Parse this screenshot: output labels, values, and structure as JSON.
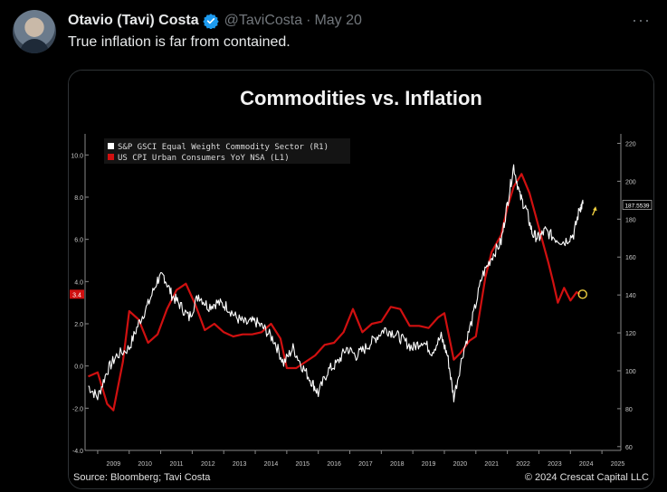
{
  "tweet": {
    "author_name": "Otavio (Tavi) Costa",
    "handle": "@TaviCosta",
    "separator": "·",
    "date": "May 20",
    "text": "True inflation is far from contained.",
    "more_label": "···"
  },
  "colors": {
    "commodity": "#ffffff",
    "cpi": "#d01010",
    "marker": "#f0d040"
  },
  "footer": {
    "source": "Source: Bloomberg; Tavi Costa",
    "copyright": "© 2024 Crescat Capital LLC"
  },
  "chart_data": {
    "type": "line",
    "title": "Commodities vs. Inflation",
    "x_ticks": [
      "2009",
      "2010",
      "2011",
      "2012",
      "2013",
      "2014",
      "2015",
      "2016",
      "2017",
      "2018",
      "2019",
      "2020",
      "2021",
      "2022",
      "2023",
      "2024",
      "2025"
    ],
    "xlim": [
      2008.6,
      2025.6
    ],
    "left_axis": {
      "ticks": [
        "10.0",
        "8.0",
        "6.0",
        "4.0",
        "2.0",
        "0.0",
        "-2.0",
        "-4.0"
      ],
      "ylim": [
        -4,
        11
      ]
    },
    "right_axis": {
      "ticks": [
        "220",
        "200",
        "180",
        "160",
        "140",
        "120",
        "100",
        "80",
        "60"
      ],
      "ylim": [
        58,
        225
      ]
    },
    "last_value_labels": {
      "left": "3.4",
      "right": "187.5539"
    },
    "series": [
      {
        "name": "S&P GSCI Equal Weight Commodity Sector  (R1)",
        "axis": "right",
        "x": [
          2008.7,
          2009.0,
          2009.3,
          2009.6,
          2010.0,
          2010.3,
          2010.6,
          2010.9,
          2011.1,
          2011.35,
          2011.6,
          2011.9,
          2012.2,
          2012.5,
          2012.8,
          2013.1,
          2013.4,
          2013.7,
          2014.0,
          2014.3,
          2014.6,
          2014.9,
          2015.2,
          2015.5,
          2015.8,
          2016.0,
          2016.3,
          2016.6,
          2016.9,
          2017.2,
          2017.5,
          2017.8,
          2018.1,
          2018.4,
          2018.7,
          2019.0,
          2019.3,
          2019.6,
          2019.9,
          2020.1,
          2020.3,
          2020.6,
          2020.9,
          2021.2,
          2021.5,
          2021.8,
          2022.0,
          2022.2,
          2022.4,
          2022.6,
          2022.8,
          2023.0,
          2023.2,
          2023.5,
          2023.8,
          2024.1,
          2024.3,
          2024.4
        ],
        "values": [
          92,
          86,
          100,
          108,
          112,
          125,
          135,
          148,
          150,
          140,
          135,
          128,
          140,
          134,
          136,
          134,
          128,
          125,
          126,
          122,
          116,
          104,
          112,
          102,
          94,
          88,
          100,
          104,
          112,
          108,
          112,
          117,
          122,
          120,
          116,
          112,
          116,
          110,
          118,
          108,
          86,
          110,
          128,
          150,
          160,
          168,
          188,
          208,
          192,
          185,
          172,
          170,
          174,
          170,
          168,
          172,
          186,
          188
        ]
      },
      {
        "name": "US CPI Urban Consumers YoY NSA  (L1)",
        "axis": "left",
        "x": [
          2008.7,
          2009.0,
          2009.3,
          2009.5,
          2009.8,
          2010.0,
          2010.3,
          2010.6,
          2010.9,
          2011.2,
          2011.5,
          2011.8,
          2012.1,
          2012.4,
          2012.7,
          2013.0,
          2013.3,
          2013.6,
          2013.9,
          2014.2,
          2014.5,
          2014.8,
          2015.0,
          2015.3,
          2015.6,
          2015.9,
          2016.2,
          2016.5,
          2016.8,
          2017.1,
          2017.4,
          2017.7,
          2018.0,
          2018.3,
          2018.6,
          2018.9,
          2019.2,
          2019.5,
          2019.8,
          2020.0,
          2020.3,
          2020.5,
          2020.8,
          2021.0,
          2021.3,
          2021.5,
          2021.8,
          2022.0,
          2022.2,
          2022.45,
          2022.7,
          2022.9,
          2023.1,
          2023.3,
          2023.45,
          2023.6,
          2023.8,
          2024.0,
          2024.2,
          2024.3
        ],
        "values": [
          -0.5,
          -0.3,
          -1.8,
          -2.1,
          0.2,
          2.6,
          2.2,
          1.1,
          1.5,
          2.7,
          3.6,
          3.9,
          2.9,
          1.7,
          2.0,
          1.6,
          1.4,
          1.5,
          1.5,
          1.6,
          2.0,
          1.3,
          -0.1,
          -0.1,
          0.2,
          0.5,
          1.0,
          1.1,
          1.6,
          2.7,
          1.6,
          2.0,
          2.1,
          2.8,
          2.7,
          1.9,
          1.9,
          1.8,
          2.3,
          2.5,
          0.3,
          0.6,
          1.2,
          1.4,
          4.2,
          5.4,
          6.2,
          7.5,
          8.5,
          9.1,
          8.2,
          7.1,
          6.0,
          4.9,
          4.0,
          3.0,
          3.7,
          3.1,
          3.5,
          3.4
        ]
      }
    ]
  }
}
